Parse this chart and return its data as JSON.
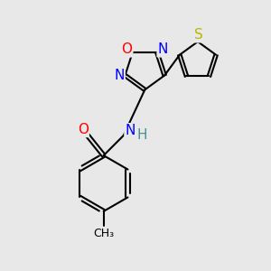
{
  "bg_color": "#e8e8e8",
  "bond_color": "#000000",
  "bond_width": 1.5,
  "atom_colors": {
    "O": "#ff0000",
    "N": "#0000ff",
    "S": "#b8b800",
    "C": "#000000",
    "H": "#4a9090"
  },
  "font_size": 11
}
